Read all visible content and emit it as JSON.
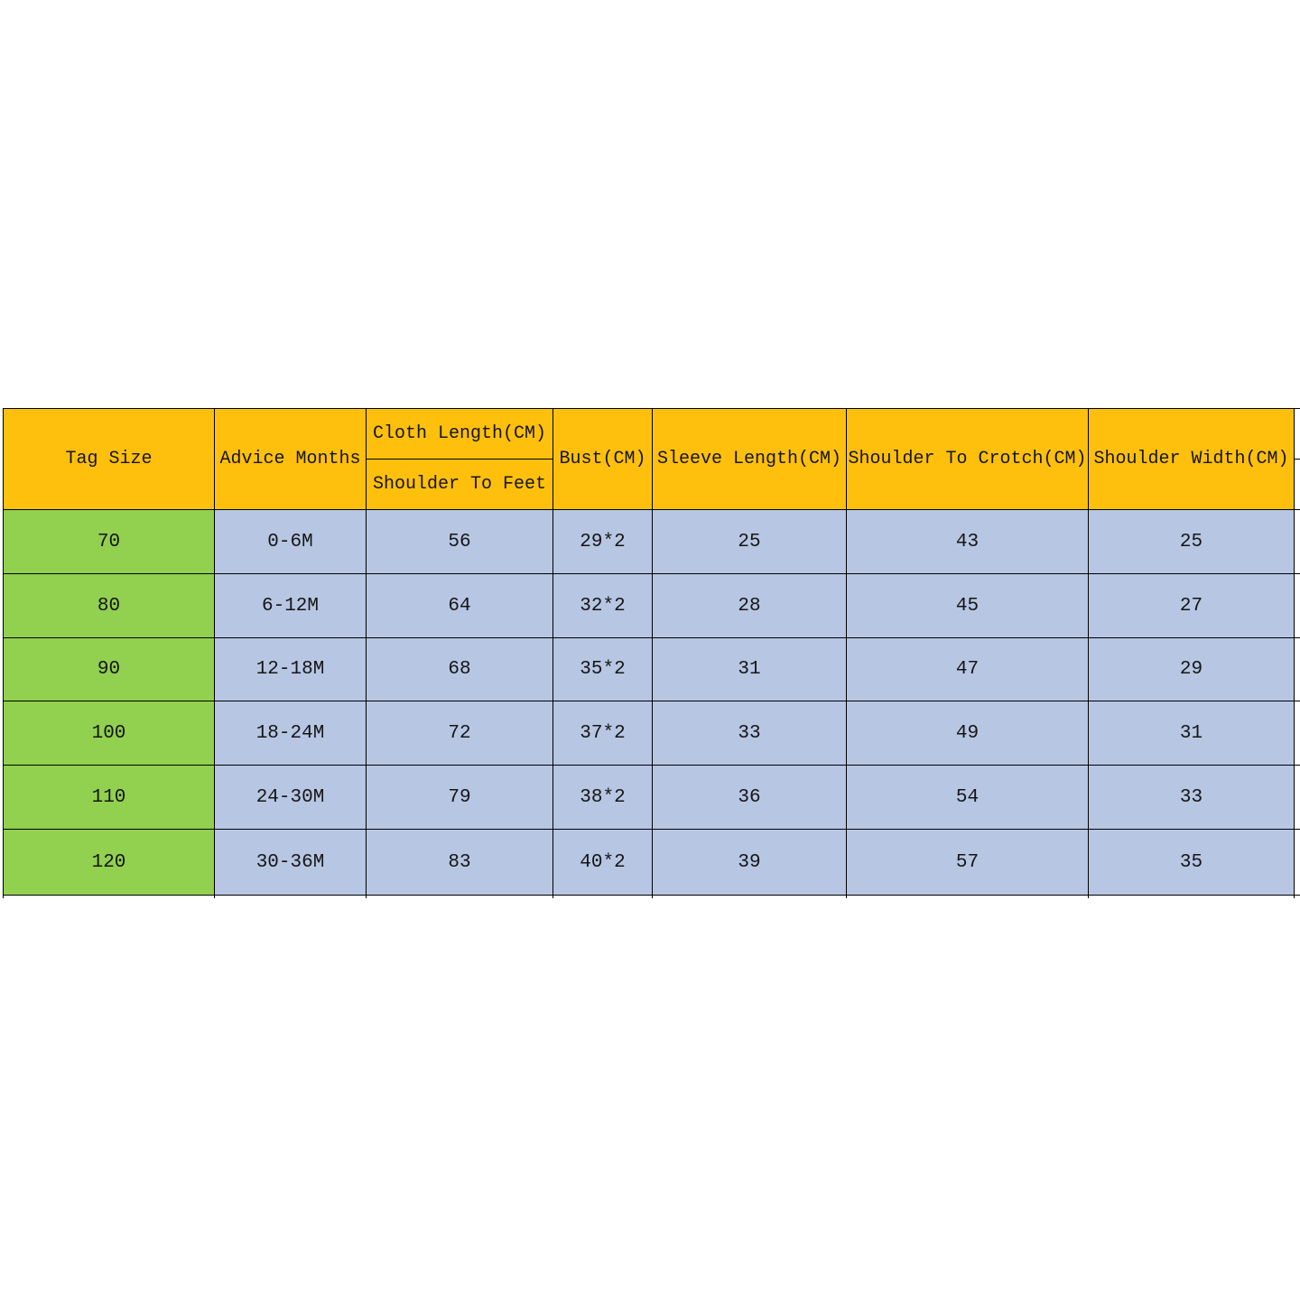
{
  "table": {
    "title": "children-clothing-size-chart",
    "unit": "CM",
    "header": {
      "tag_size": "Tag Size",
      "advice_months": "Advice Months",
      "cloth_length_top": "Cloth Length(CM)",
      "cloth_length_bottom": "Shoulder To Feet",
      "bust": "Bust(CM)",
      "sleeve_length": "Sleeve Length(CM)",
      "shoulder_to_crotch": "Shoulder To Crotch(CM)",
      "shoulder_width": "Shoulder Width(CM)"
    },
    "rows": [
      {
        "tag_size": "70",
        "advice_months": "0-6M",
        "cloth_length": "56",
        "bust": "29*2",
        "sleeve_length": "25",
        "shoulder_to_crotch": "43",
        "shoulder_width": "25"
      },
      {
        "tag_size": "80",
        "advice_months": "6-12M",
        "cloth_length": "64",
        "bust": "32*2",
        "sleeve_length": "28",
        "shoulder_to_crotch": "45",
        "shoulder_width": "27"
      },
      {
        "tag_size": "90",
        "advice_months": "12-18M",
        "cloth_length": "68",
        "bust": "35*2",
        "sleeve_length": "31",
        "shoulder_to_crotch": "47",
        "shoulder_width": "29"
      },
      {
        "tag_size": "100",
        "advice_months": "18-24M",
        "cloth_length": "72",
        "bust": "37*2",
        "sleeve_length": "33",
        "shoulder_to_crotch": "49",
        "shoulder_width": "31"
      },
      {
        "tag_size": "110",
        "advice_months": "24-30M",
        "cloth_length": "79",
        "bust": "38*2",
        "sleeve_length": "36",
        "shoulder_to_crotch": "54",
        "shoulder_width": "33"
      },
      {
        "tag_size": "120",
        "advice_months": "30-36M",
        "cloth_length": "83",
        "bust": "40*2",
        "sleeve_length": "39",
        "shoulder_to_crotch": "57",
        "shoulder_width": "35"
      }
    ],
    "colors": {
      "header_bg": "#FEC00D",
      "size_column_bg": "#92D050",
      "data_cell_bg": "#B7C6E3",
      "border": "#000000",
      "page_bg": "#FFFFFF",
      "text": "#151515"
    }
  }
}
